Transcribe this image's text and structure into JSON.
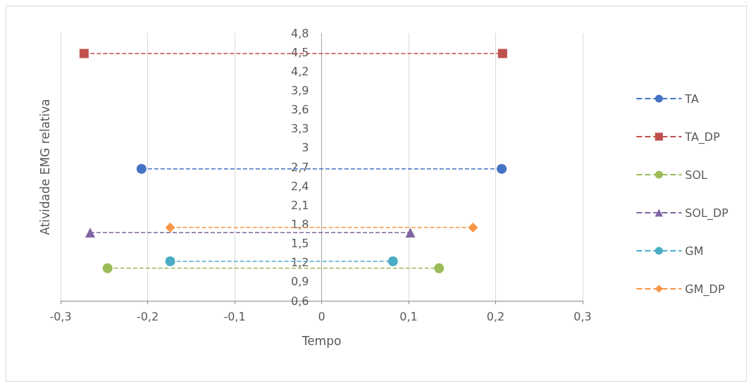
{
  "chart_data": {
    "type": "line",
    "xlabel": "Tempo",
    "ylabel": "Atividade EMG relativa",
    "xlim": [
      -0.3,
      0.3
    ],
    "xticks": [
      {
        "value": -0.3,
        "label": "-0,3"
      },
      {
        "value": -0.2,
        "label": "-0,2"
      },
      {
        "value": -0.1,
        "label": "-0,1"
      },
      0,
      {
        "value": 0.1,
        "label": "0,1"
      },
      {
        "value": 0.2,
        "label": "0,2"
      },
      {
        "value": 0.3,
        "label": "0,3"
      }
    ],
    "ylim": [
      0.6,
      4.8
    ],
    "yticks": [
      {
        "value": 0.6,
        "label": "0,6"
      },
      {
        "value": 0.9,
        "label": "0,9"
      },
      {
        "value": 1.2,
        "label": "1,2"
      },
      {
        "value": 1.5,
        "label": "1,5"
      },
      {
        "value": 1.8,
        "label": "1,8"
      },
      {
        "value": 2.1,
        "label": "2,1"
      },
      {
        "value": 2.4,
        "label": "2,4"
      },
      {
        "value": 2.7,
        "label": "2,7"
      },
      3,
      {
        "value": 3.3,
        "label": "3,3"
      },
      {
        "value": 3.6,
        "label": "3,6"
      },
      {
        "value": 3.9,
        "label": "3,9"
      },
      {
        "value": 4.2,
        "label": "4,2"
      },
      {
        "value": 4.5,
        "label": "4,5"
      },
      {
        "value": 4.8,
        "label": "4,8"
      }
    ],
    "grid": "x",
    "legend": "right",
    "line_style": "dashed",
    "series": [
      {
        "name": "TA",
        "color": "#4472c4",
        "marker": "circle",
        "x": [
          -0.207,
          0.207
        ],
        "values": [
          2.67,
          2.67
        ]
      },
      {
        "name": "TA_DP",
        "color": "#c0504d",
        "marker": "square",
        "x": [
          -0.273,
          0.208
        ],
        "values": [
          4.48,
          4.48
        ]
      },
      {
        "name": "SOL",
        "color": "#9bbb59",
        "marker": "circle",
        "x": [
          -0.246,
          0.135
        ],
        "values": [
          1.11,
          1.11
        ]
      },
      {
        "name": "SOL_DP",
        "color": "#8064a2",
        "marker": "triangle",
        "x": [
          -0.266,
          0.102
        ],
        "values": [
          1.67,
          1.67
        ]
      },
      {
        "name": "GM",
        "color": "#4bacc6",
        "marker": "circle",
        "x": [
          -0.174,
          0.082
        ],
        "values": [
          1.22,
          1.22
        ]
      },
      {
        "name": "GM_DP",
        "color": "#f79646",
        "marker": "diamond",
        "x": [
          -0.174,
          0.174
        ],
        "values": [
          1.75,
          1.75
        ]
      }
    ]
  }
}
